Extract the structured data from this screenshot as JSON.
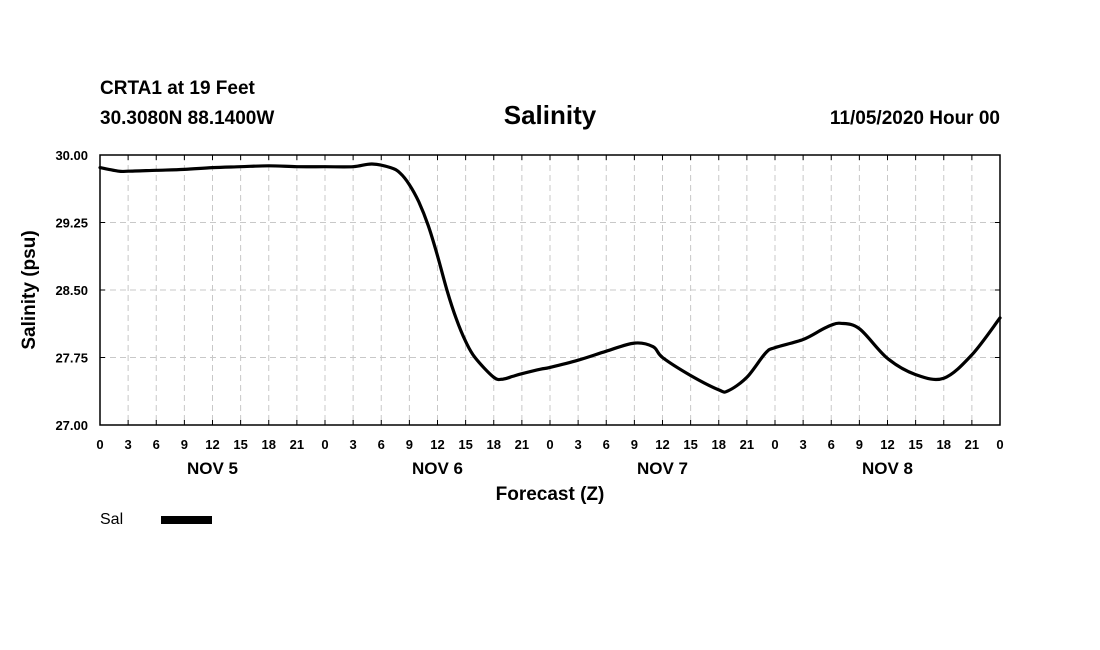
{
  "chart_data": {
    "type": "line",
    "title": "Salinity",
    "station": "CRTA1 at 19 Feet",
    "location": "30.3080N 88.1400W",
    "issued": "11/05/2020 Hour 00",
    "xlabel": "Forecast (Z)",
    "ylabel": "Salinity (psu)",
    "ylim": [
      27.0,
      30.0
    ],
    "yticks": [
      "30.00",
      "29.25",
      "28.50",
      "27.75",
      "27.00"
    ],
    "ytick_values": [
      30.0,
      29.25,
      28.5,
      27.75,
      27.0
    ],
    "xlim_hours": [
      0,
      96
    ],
    "xtick_labels": [
      "0",
      "3",
      "6",
      "9",
      "12",
      "15",
      "18",
      "21",
      "0",
      "3",
      "6",
      "9",
      "12",
      "15",
      "18",
      "21",
      "0",
      "3",
      "6",
      "9",
      "12",
      "15",
      "18",
      "21",
      "0",
      "3",
      "6",
      "9",
      "12",
      "15",
      "18",
      "21",
      "0"
    ],
    "day_labels": [
      {
        "label": "NOV 5",
        "hour": 12
      },
      {
        "label": "NOV 6",
        "hour": 36
      },
      {
        "label": "NOV 7",
        "hour": 60
      },
      {
        "label": "NOV 8",
        "hour": 84
      }
    ],
    "grid": true,
    "legend": "bottom-left",
    "series": [
      {
        "name": "Sal",
        "color": "#000000",
        "hours": [
          0,
          2,
          3,
          6,
          9,
          12,
          15,
          18,
          21,
          24,
          27,
          29,
          31,
          32,
          33,
          34,
          35,
          36,
          37,
          38,
          39,
          40,
          42,
          43,
          44,
          45,
          47,
          48,
          51,
          54,
          57,
          59,
          60,
          63,
          66,
          67,
          69,
          71,
          72,
          75,
          77,
          78,
          79,
          81,
          84,
          87,
          90,
          93,
          96
        ],
        "values": [
          29.86,
          29.82,
          29.82,
          29.83,
          29.84,
          29.86,
          29.87,
          29.88,
          29.87,
          29.87,
          29.87,
          29.9,
          29.86,
          29.8,
          29.67,
          29.48,
          29.22,
          28.88,
          28.5,
          28.18,
          27.93,
          27.75,
          27.53,
          27.51,
          27.54,
          27.57,
          27.62,
          27.64,
          27.72,
          27.82,
          27.91,
          27.87,
          27.75,
          27.55,
          27.39,
          27.38,
          27.53,
          27.8,
          27.86,
          27.95,
          28.06,
          28.11,
          28.13,
          28.07,
          27.74,
          27.56,
          27.52,
          27.78,
          28.19
        ]
      }
    ]
  }
}
